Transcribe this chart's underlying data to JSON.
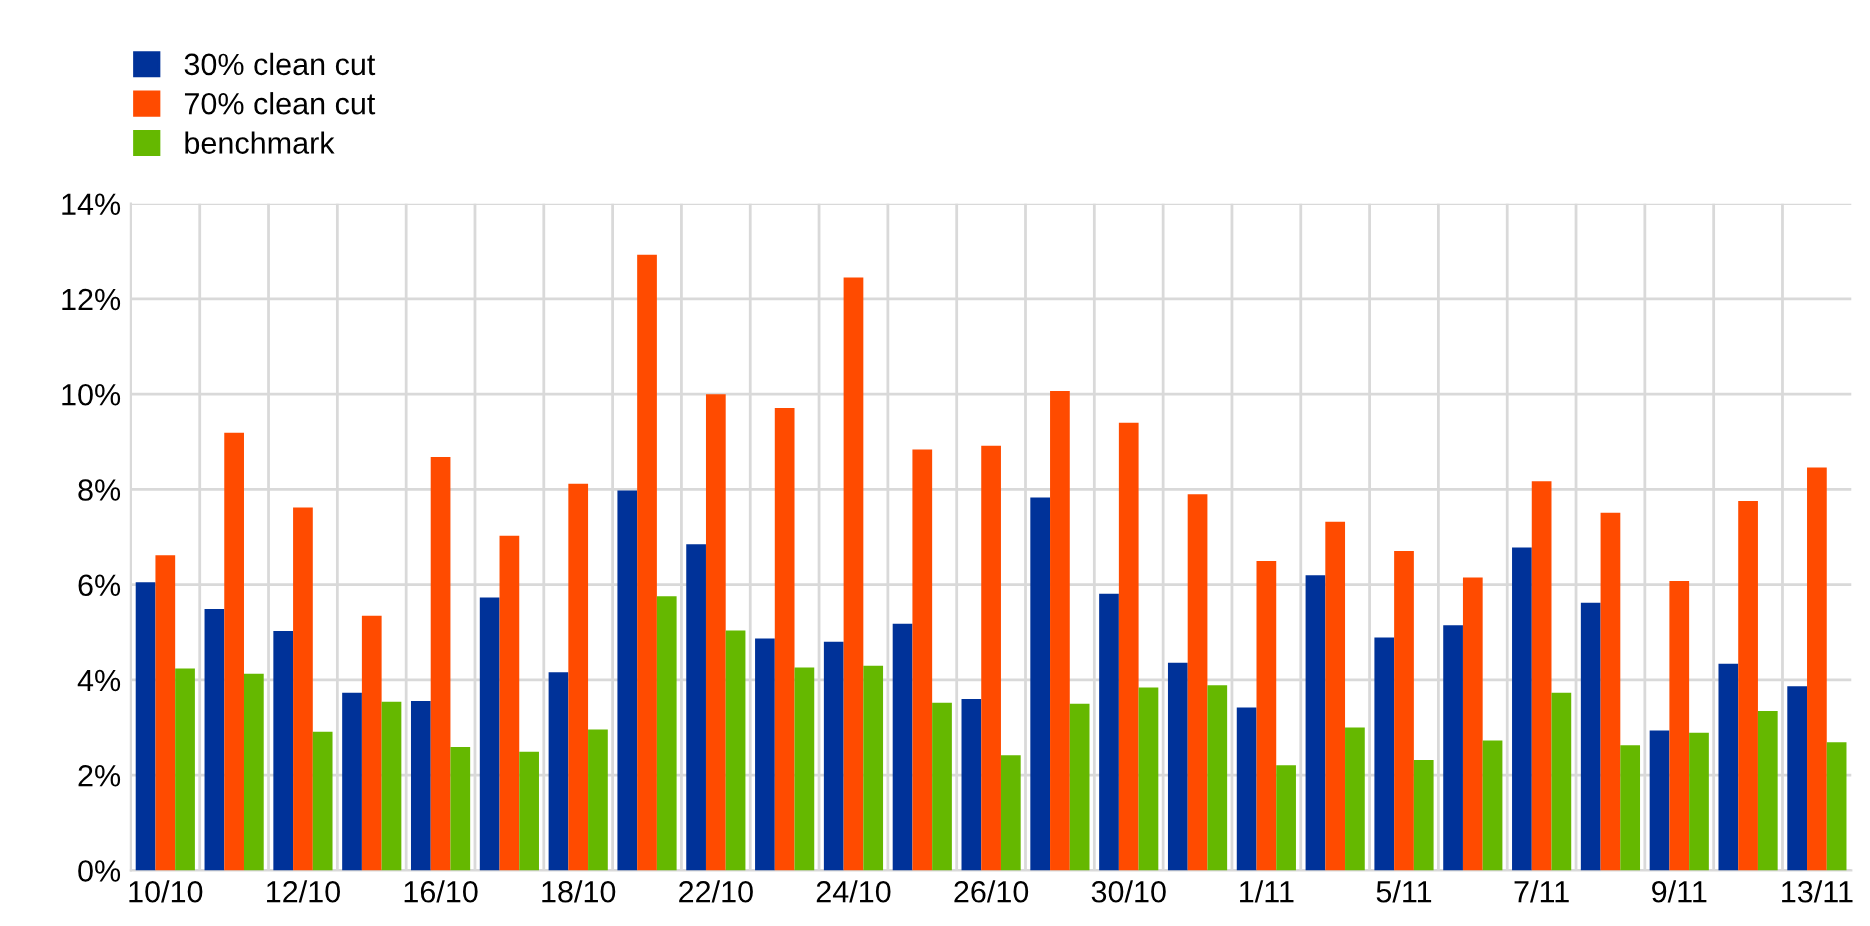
{
  "chart_data": {
    "type": "bar",
    "categories": [
      "10/10",
      null,
      "12/10",
      null,
      "16/10",
      null,
      "18/10",
      null,
      "22/10",
      null,
      "24/10",
      null,
      "26/10",
      null,
      "30/10",
      null,
      "1/11",
      null,
      "5/11",
      null,
      "7/11",
      null,
      "9/11",
      null,
      "13/11"
    ],
    "series": [
      {
        "name": "30% clean cut",
        "color": "#003299",
        "values": [
          6.05,
          5.49,
          5.03,
          3.73,
          3.56,
          5.73,
          4.16,
          7.98,
          6.85,
          4.87,
          4.8,
          5.18,
          3.6,
          7.83,
          5.81,
          4.36,
          3.42,
          6.2,
          4.89,
          5.15,
          6.78,
          5.62,
          2.94,
          4.34,
          3.87
        ]
      },
      {
        "name": "70% clean cut",
        "color": "#ff4b00",
        "values": [
          6.62,
          9.19,
          7.62,
          5.35,
          8.68,
          7.03,
          8.12,
          12.93,
          10.0,
          9.71,
          12.45,
          8.84,
          8.92,
          10.07,
          9.4,
          7.9,
          6.5,
          7.32,
          6.71,
          6.15,
          8.17,
          7.51,
          6.08,
          7.76,
          8.46
        ]
      },
      {
        "name": "benchmark",
        "color": "#65b800",
        "values": [
          4.24,
          4.13,
          2.91,
          3.54,
          2.59,
          2.49,
          2.96,
          5.76,
          5.04,
          4.26,
          4.3,
          3.52,
          2.42,
          3.5,
          3.84,
          3.89,
          2.21,
          3.0,
          2.32,
          2.73,
          3.73,
          2.63,
          2.89,
          3.35,
          2.69
        ]
      }
    ],
    "ylim": [
      0,
      14
    ],
    "yticks": [
      {
        "value": 0,
        "label": "0%"
      },
      {
        "value": 2,
        "label": "2%"
      },
      {
        "value": 4,
        "label": "4%"
      },
      {
        "value": 6,
        "label": "6%"
      },
      {
        "value": 8,
        "label": "8%"
      },
      {
        "value": 10,
        "label": "10%"
      },
      {
        "value": 12,
        "label": "12%"
      },
      {
        "value": 14,
        "label": "14%"
      }
    ],
    "grid": true,
    "legend": "top left"
  }
}
